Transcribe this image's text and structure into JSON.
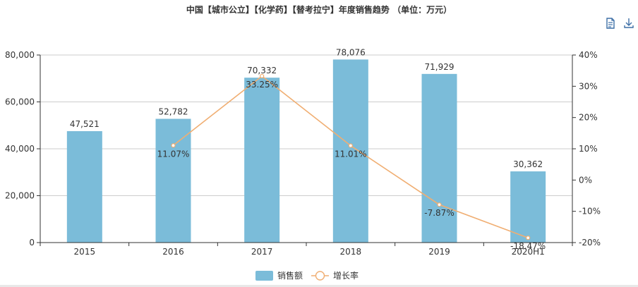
{
  "toolbar": {
    "data_view_icon": "document-icon",
    "download_icon": "download-icon"
  },
  "colors": {
    "bar": "#7bbcd9",
    "line": "#f0ae72",
    "grid": "#cccccc",
    "axis": "#333333",
    "icon": "#3d6fa6"
  },
  "chart_data": {
    "type": "bar",
    "title": "中国【城市公立】【化学药】【替考拉宁】年度销售趋势 （单位：万元）",
    "categories": [
      "2015",
      "2016",
      "2017",
      "2018",
      "2019",
      "2020H1"
    ],
    "series": [
      {
        "name": "销售额",
        "type": "bar",
        "axis": "left",
        "values": [
          47521,
          52782,
          70332,
          78076,
          71929,
          30362
        ],
        "labels": [
          "47,521",
          "52,782",
          "70,332",
          "78,076",
          "71,929",
          "30,362"
        ]
      },
      {
        "name": "增长率",
        "type": "line",
        "axis": "right",
        "values": [
          null,
          11.07,
          33.25,
          11.01,
          -7.87,
          -18.47
        ],
        "labels": [
          "",
          "11.07%",
          "33.25%",
          "11.01%",
          "-7.87%",
          "-18.47%"
        ]
      }
    ],
    "y_left": {
      "range": [
        0,
        80000
      ],
      "ticks": [
        0,
        20000,
        40000,
        60000,
        80000
      ],
      "tick_labels": [
        "0",
        "20,000",
        "40,000",
        "60,000",
        "80,000"
      ]
    },
    "y_right": {
      "range": [
        -20,
        40
      ],
      "ticks": [
        -20,
        -10,
        0,
        10,
        20,
        30,
        40
      ],
      "tick_labels": [
        "-20%",
        "-10%",
        "0%",
        "10%",
        "20%",
        "30%",
        "40%"
      ]
    },
    "grid": true,
    "legend": "bottom-center"
  }
}
